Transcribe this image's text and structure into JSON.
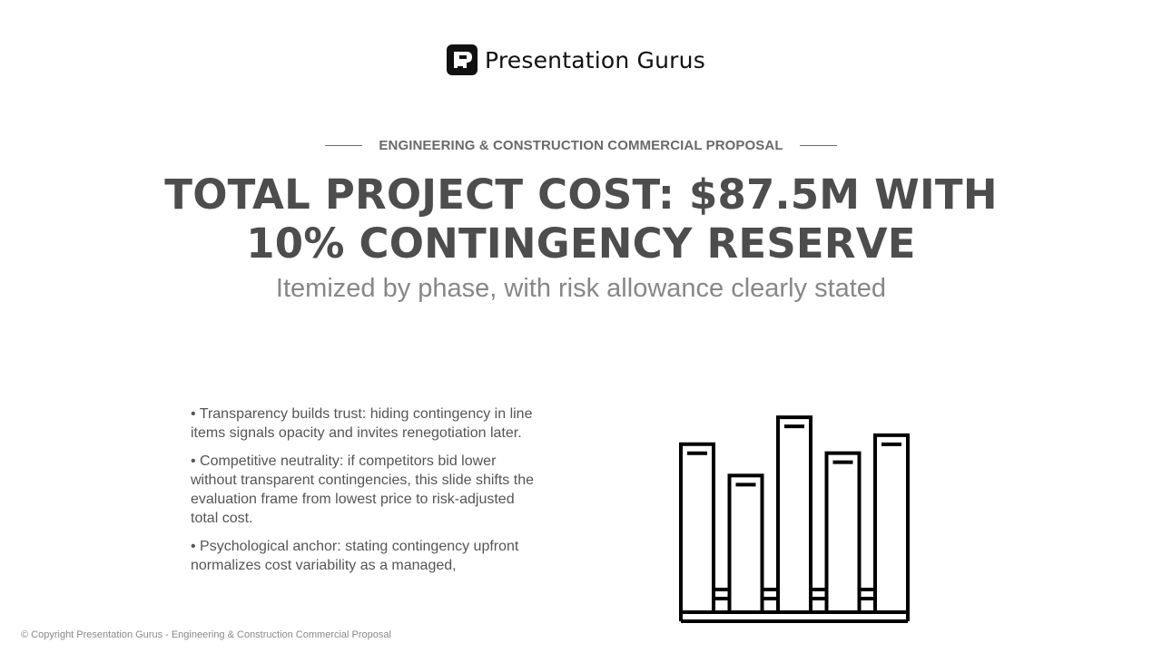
{
  "brand": {
    "name": "Presentation Gurus",
    "icon": "presentation-gurus-logo-icon",
    "color": "#111111"
  },
  "slide": {
    "kicker": "ENGINEERING & CONSTRUCTION COMMERCIAL PROPOSAL",
    "title": "TOTAL PROJECT COST: $87.5M WITH 10% CONTINGENCY RESERVE",
    "subtitle": "Itemized by phase, with risk allowance clearly stated",
    "bullets": [
      "• Transparency builds trust: hiding contingency in line items signals opacity and invites renegotiation later.",
      "• Competitive neutrality: if competitors bid lower without transparent contingencies, this slide shifts the evaluation frame from lowest price to risk-adjusted total cost.",
      "• Psychological anchor: stating contingency upfront normalizes cost variability as a managed,"
    ],
    "illustration": {
      "icon": "bar-chart-outline-icon",
      "bar_levels": [
        0.75,
        0.61,
        0.87,
        0.71,
        0.79
      ]
    }
  },
  "footer": {
    "text": "© Copyright Presentation Gurus - Engineering & Construction Commercial Proposal"
  },
  "colors": {
    "title": "#4d4d4d",
    "subtitle": "#878787",
    "body": "#555555",
    "icon_stroke": "#000000"
  }
}
